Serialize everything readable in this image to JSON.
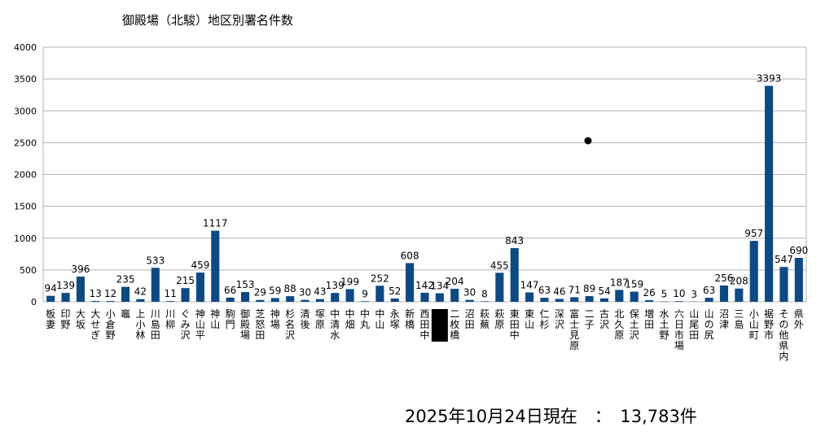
{
  "chart_data": {
    "type": "bar",
    "title": "御殿場（北駿）地区別署名件数",
    "ylim": [
      0,
      4000
    ],
    "yticks": [
      0,
      500,
      1000,
      1500,
      2000,
      2500,
      3000,
      3500,
      4000
    ],
    "grid": true,
    "bar_color": "#0b4a85",
    "categories": [
      "板妻",
      "印野",
      "大坂",
      "大せぎ",
      "小倉野",
      "竈",
      "上小林",
      "川島田",
      "川柳",
      "ぐみ沢",
      "神山平",
      "神山",
      "駒門",
      "御殿場",
      "芝怒田",
      "神場",
      "杉名沢",
      "清後",
      "塚原",
      "中清水",
      "中畑",
      "中丸",
      "中山",
      "永塚",
      "新橋",
      "西田中",
      "",
      "二枚橋",
      "沼田",
      "萩蕪",
      "萩原",
      "東田中",
      "東山",
      "仁杉",
      "深沢",
      "富士見原",
      "二子",
      "古沢",
      "北久原",
      "保土沢",
      "増田",
      "水土野",
      "六日市場",
      "山尾田",
      "山の尻",
      "沼津",
      "三島",
      "小山町",
      "裾野市",
      "その他県内",
      "県外"
    ],
    "values": [
      94,
      139,
      396,
      13,
      12,
      235,
      42,
      533,
      11,
      215,
      459,
      1117,
      66,
      153,
      29,
      59,
      88,
      30,
      43,
      139,
      199,
      9,
      252,
      52,
      608,
      142,
      134,
      204,
      30,
      8,
      455,
      843,
      147,
      63,
      46,
      71,
      89,
      54,
      187,
      159,
      26,
      5,
      10,
      3,
      63,
      256,
      208,
      957,
      3393,
      547,
      690
    ]
  },
  "footer": {
    "text": "2025年10月24日現在　：　13,783件"
  }
}
